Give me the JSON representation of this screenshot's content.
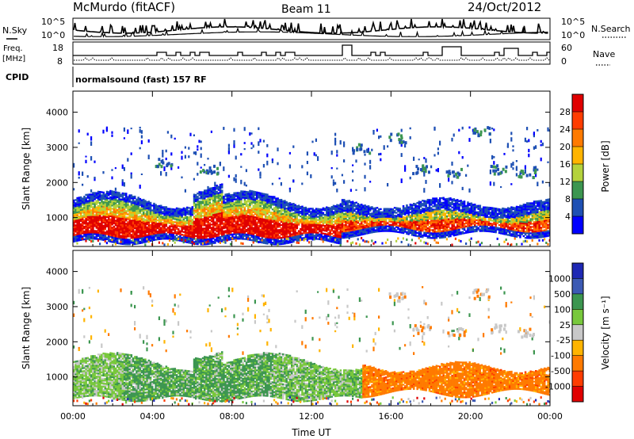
{
  "header": {
    "station": "McMurdo (fitACF)",
    "beam": "Beam 11",
    "date": "24/Oct/2012"
  },
  "param_panels": {
    "nsky_label": "N.Sky",
    "nsky_ticks": [
      "10^5",
      "10^0"
    ],
    "nsearch_label": "N.Search",
    "nsearch_ticks": [
      "10^5",
      "10^0"
    ],
    "freq_label": "Freq.",
    "freq_unit": "[MHz]",
    "freq_ticks": [
      "18",
      "8"
    ],
    "nave_label": "Nave",
    "nave_ticks": [
      "60",
      "0"
    ],
    "cpid_label": "CPID",
    "cpid_value": "normalsound (fast) 157 RF"
  },
  "chart_data": [
    {
      "type": "heatmap",
      "title": "",
      "ylabel": "Slant Range [km]",
      "xlabel": "",
      "ylim": [
        180,
        4600
      ],
      "yticks": [
        "1000",
        "2000",
        "3000",
        "4000"
      ],
      "xticks": [
        "00:00",
        "04:00",
        "08:00",
        "12:00",
        "16:00",
        "20:00",
        "00:00"
      ],
      "colorbar": {
        "label": "Power [dB]",
        "ticks": [
          "28",
          "24",
          "20",
          "16",
          "12",
          "8",
          "4"
        ],
        "colors": [
          "#e00000",
          "#ff3c00",
          "#ff7a00",
          "#ffb400",
          "#b4d23c",
          "#3c9650",
          "#1e50b4",
          "#0000ff"
        ]
      },
      "description_regions": [
        {
          "x_hours": [
            0,
            13.5
          ],
          "range_km": [
            400,
            1500
          ],
          "level": "high"
        },
        {
          "x_hours": [
            13.5,
            24
          ],
          "range_km": [
            600,
            1300
          ],
          "level": "medium"
        },
        {
          "x_hours": [
            0,
            24
          ],
          "range_km": [
            2000,
            3500
          ],
          "level": "sparse-low"
        }
      ]
    },
    {
      "type": "heatmap",
      "title": "",
      "ylabel": "Slant Range [km]",
      "xlabel": "Time UT",
      "ylim": [
        180,
        4600
      ],
      "yticks": [
        "1000",
        "2000",
        "3000",
        "4000"
      ],
      "xticks": [
        "00:00",
        "04:00",
        "08:00",
        "12:00",
        "16:00",
        "20:00",
        "00:00"
      ],
      "colorbar": {
        "label": "Velocity [m s⁻¹]",
        "ticks": [
          "1000",
          "500",
          "100",
          "25",
          "-25",
          "-100",
          "-500",
          "-1000"
        ],
        "colors": [
          "#1e28b4",
          "#3c5ab4",
          "#3c9650",
          "#78c83c",
          "#c8c8c8",
          "#ffb400",
          "#ff7a00",
          "#ff3c00",
          "#e00000"
        ]
      },
      "description_regions": [
        {
          "x_hours": [
            0,
            14.5
          ],
          "range_km": [
            400,
            1500
          ],
          "sign": "positive"
        },
        {
          "x_hours": [
            14.5,
            24
          ],
          "range_km": [
            500,
            1300
          ],
          "sign": "negative"
        }
      ]
    }
  ]
}
